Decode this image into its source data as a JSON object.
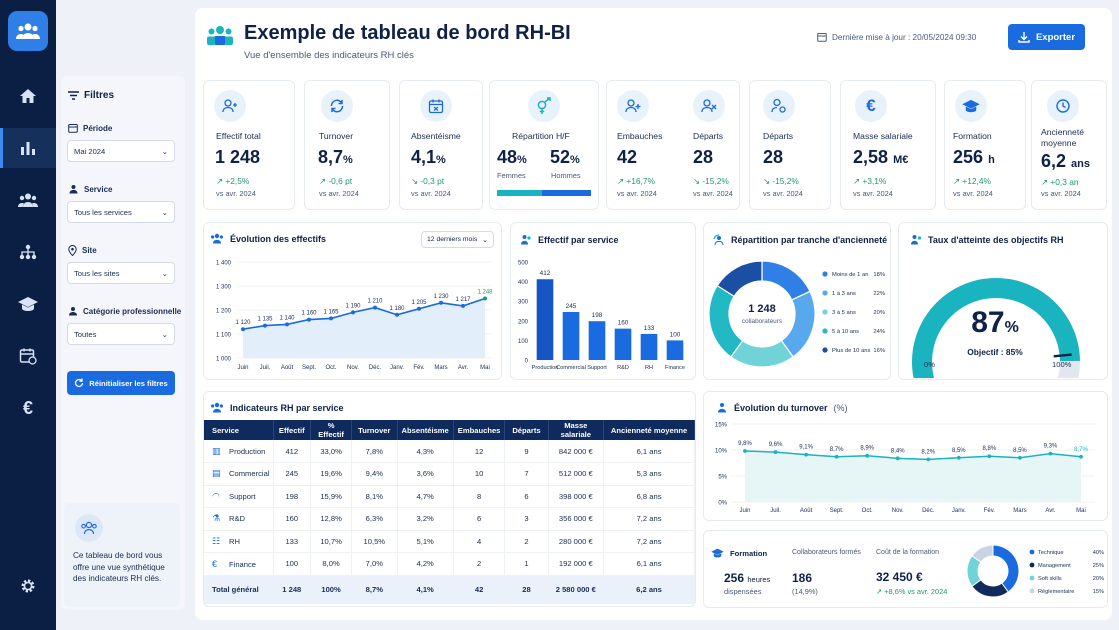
{
  "nav": {
    "items": [
      "home-icon",
      "bar-chart-icon",
      "users-icon",
      "org-chart-icon",
      "graduation-cap-icon",
      "calendar-icon",
      "euro-icon"
    ],
    "active_index": 1,
    "settings": "gear-icon"
  },
  "filters": {
    "title": "Filtres",
    "periode_label": "Période",
    "periode_value": "Mai 2024",
    "service_label": "Service",
    "service_value": "Tous les services",
    "site_label": "Site",
    "site_value": "Tous les sites",
    "categorie_label": "Catégorie professionnelle",
    "categorie_value": "Toutes",
    "reset_label": "Réinitialiser les filtres",
    "info_text": "Ce tableau de bord vous offre une vue synthétique des indicateurs RH clés."
  },
  "header": {
    "title": "Exemple de tableau de bord RH-BI",
    "subtitle": "Vue d'ensemble des indicateurs RH clés",
    "updated": "Dernière mise à jour : 20/05/2024 09:30",
    "export_label": "Exporter"
  },
  "kpis": [
    {
      "label": "Effectif total",
      "value": "1 248",
      "unit": "",
      "delta": "↗ +2,5%",
      "vs": "vs avr. 2024"
    },
    {
      "label": "Turnover",
      "value": "8,7",
      "unit": "%",
      "delta": "↗ -0,6 pt",
      "vs": "vs avr. 2024"
    },
    {
      "label": "Absentéisme",
      "value": "4,1",
      "unit": "%",
      "delta": "↘ -0,3 pt",
      "vs": "vs avr. 2024"
    },
    {
      "label": "Embauches",
      "value": "42",
      "unit": "",
      "delta": "↗ +16,7%",
      "vs": "vs avr. 2024"
    },
    {
      "label": "Départs",
      "value": "28",
      "unit": "",
      "delta": "↘ -15,2%",
      "vs": "vs avr. 2024"
    },
    {
      "label": "Départs",
      "value": "28",
      "unit": "",
      "delta": "↘ -15,2%",
      "vs": "vs avr. 2024"
    },
    {
      "label": "Masse salariale",
      "value": "2,58",
      "unit": "M€",
      "delta": "↗ +3,1%",
      "vs": "vs avr. 2024"
    },
    {
      "label": "Formation",
      "value": "256",
      "unit": "h",
      "delta": "↗ +12,4%",
      "vs": "vs avr. 2024"
    },
    {
      "label": "Ancienneté moyenne",
      "value": "6,2",
      "unit": "ans",
      "delta": "↗ +0,3 an",
      "vs": "vs avr. 2024"
    }
  ],
  "repartition": {
    "label": "Répartition H/F",
    "femmes_value": "48",
    "hommes_value": "52",
    "unit": "%",
    "femmes_label": "Femmes",
    "hommes_label": "Hommes",
    "femmes_share": 0.48
  },
  "colors": {
    "accent": "#1a6ae0",
    "navy": "#0f2a5c",
    "teal": "#1ab3c0",
    "green": "#1f9a6c"
  },
  "evolution": {
    "title": "Évolution des effectifs",
    "period_select": "12 derniers mois"
  },
  "service_chart": {
    "title": "Effectif par service"
  },
  "anciennete": {
    "title": "Répartition par tranche d'ancienneté",
    "center_value": "1 248",
    "center_label": "collaborateurs"
  },
  "objectifs": {
    "title": "Taux d'atteinte des objectifs RH",
    "value": "87",
    "unit": "%",
    "target": "Objectif : 85%",
    "min_label": "0%",
    "max_label": "100%",
    "fraction": 0.87
  },
  "table": {
    "title": "Indicateurs RH par service",
    "headers": [
      "Service",
      "Effectif",
      "% Effectif",
      "Turnover",
      "Absentéisme",
      "Embauches",
      "Départs",
      "Masse salariale",
      "Ancienneté moyenne"
    ],
    "rows": [
      {
        "icon": "factory-icon",
        "cells": [
          "Production",
          "412",
          "33,0%",
          "7,8%",
          "4,3%",
          "12",
          "9",
          "842 000 €",
          "6,1 ans"
        ]
      },
      {
        "icon": "building-icon",
        "cells": [
          "Commercial",
          "245",
          "19,6%",
          "9,4%",
          "3,6%",
          "10",
          "7",
          "512 000 €",
          "5,3 ans"
        ]
      },
      {
        "icon": "headset-icon",
        "cells": [
          "Support",
          "198",
          "15,9%",
          "8,1%",
          "4,7%",
          "8",
          "6",
          "398 000 €",
          "6,8 ans"
        ]
      },
      {
        "icon": "flask-icon",
        "cells": [
          "R&D",
          "160",
          "12,8%",
          "6,3%",
          "3,2%",
          "6",
          "3",
          "356 000 €",
          "7,2 ans"
        ]
      },
      {
        "icon": "people-icon",
        "cells": [
          "RH",
          "133",
          "10,7%",
          "10,5%",
          "5,1%",
          "4",
          "2",
          "280 000 €",
          "7,2 ans"
        ]
      },
      {
        "icon": "euro-icon",
        "cells": [
          "Finance",
          "100",
          "8,0%",
          "7,0%",
          "4,2%",
          "2",
          "1",
          "192 000 €",
          "6,1 ans"
        ]
      }
    ],
    "total": [
      "Total général",
      "1 248",
      "100%",
      "8,7%",
      "4,1%",
      "42",
      "28",
      "2 580 000 €",
      "6,2 ans"
    ]
  },
  "turnover_chart": {
    "title": "Évolution du turnover",
    "title_unit": "(%)"
  },
  "formation": {
    "title": "Formation",
    "formes_label": "Collaborateurs formés",
    "cout_label": "Coût de la formation",
    "heures_value": "256",
    "heures_unit": "heures",
    "heures_label": "dispensées",
    "formes_value": "186",
    "formes_pct": "(14,9%)",
    "cout_value": "32 450 €",
    "cout_delta": "↗ +8,6% vs avr. 2024"
  },
  "chart_data": [
    {
      "type": "line",
      "title": "Évolution des effectifs",
      "x": [
        "Juin",
        "Juil.",
        "Août",
        "Sept.",
        "Oct.",
        "Nov.",
        "Déc.",
        "Janv.",
        "Fév.",
        "Mars",
        "Avr.",
        "Mai"
      ],
      "values": [
        1120,
        1135,
        1140,
        1160,
        1165,
        1190,
        1210,
        1180,
        1205,
        1230,
        1217,
        1248
      ],
      "labels": [
        "1 120",
        "1 135",
        "1 140",
        "1 160",
        "1 165",
        "1 190",
        "1 210",
        "1 180",
        "1 205",
        "1 230",
        "1 217",
        "1 248"
      ],
      "yticks": [
        "1 000",
        "1 100",
        "1 200",
        "1 300",
        "1 400"
      ],
      "ylim": [
        1000,
        1400
      ]
    },
    {
      "type": "bar",
      "title": "Effectif par service",
      "categories": [
        "Production",
        "Commercial",
        "Support",
        "R&D",
        "RH",
        "Finance"
      ],
      "values": [
        412,
        245,
        198,
        160,
        133,
        100
      ],
      "yticks": [
        "0",
        "100",
        "200",
        "300",
        "400",
        "500"
      ],
      "ylim": [
        0,
        500
      ]
    },
    {
      "type": "pie",
      "title": "Répartition par tranche d'ancienneté",
      "categories": [
        "Moins de 1 an",
        "1 à 3 ans",
        "3 à 5 ans",
        "5 à 10 ans",
        "Plus de 10 ans"
      ],
      "values": [
        18,
        22,
        20,
        24,
        16
      ],
      "labels": [
        "18%",
        "22%",
        "20%",
        "24%",
        "16%"
      ],
      "colors": [
        "#2f7fe6",
        "#58a8ee",
        "#6fd3d8",
        "#22b8c4",
        "#1b4fa3"
      ]
    },
    {
      "type": "line",
      "title": "Évolution du turnover",
      "x": [
        "Juin",
        "Juil.",
        "Août",
        "Sept.",
        "Oct.",
        "Nov.",
        "Déc.",
        "Janv.",
        "Fév.",
        "Mars",
        "Avr.",
        "Mai"
      ],
      "values": [
        9.8,
        9.6,
        9.1,
        8.7,
        8.9,
        8.4,
        8.2,
        8.5,
        8.8,
        8.5,
        9.3,
        8.7
      ],
      "labels": [
        "9,8%",
        "9,6%",
        "9,1%",
        "8,7%",
        "8,9%",
        "8,4%",
        "8,2%",
        "8,5%",
        "8,8%",
        "8,5%",
        "9,3%",
        "8,7%"
      ],
      "yticks": [
        "0%",
        "5%",
        "10%",
        "15%"
      ],
      "ylim": [
        0,
        15
      ]
    },
    {
      "type": "pie",
      "title": "Formation",
      "categories": [
        "Technique",
        "Management",
        "Soft skills",
        "Réglementaire"
      ],
      "values": [
        40,
        25,
        20,
        15
      ],
      "labels": [
        "40%",
        "25%",
        "20%",
        "15%"
      ],
      "colors": [
        "#1a6ae0",
        "#0f2a5c",
        "#6fd3d8",
        "#c9d3e2"
      ]
    }
  ]
}
